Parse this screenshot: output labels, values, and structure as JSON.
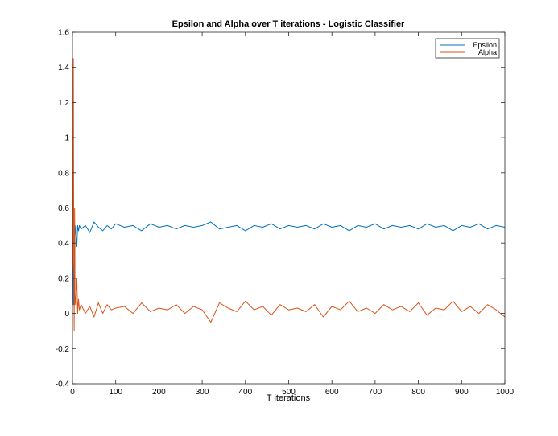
{
  "chart_data": {
    "type": "line",
    "title": "Epsilon and Alpha over T iterations - Logistic Classifier",
    "xlabel": "T iterations",
    "ylabel": "",
    "xlim": [
      0,
      1000
    ],
    "ylim": [
      -0.4,
      1.6
    ],
    "xticks": [
      "0",
      "100",
      "200",
      "300",
      "400",
      "500",
      "600",
      "700",
      "800",
      "900",
      "1000"
    ],
    "yticks": [
      "-0.4",
      "-0.2",
      "0",
      "0.2",
      "0.4",
      "0.6",
      "0.8",
      "1",
      "1.2",
      "1.4",
      "1.6"
    ],
    "grid": false,
    "legend_position": "top-right",
    "series": [
      {
        "name": "Epsilon",
        "color": "#0072BD",
        "x": [
          1,
          2,
          3,
          4,
          5,
          6,
          8,
          10,
          12,
          14,
          16,
          20,
          30,
          40,
          50,
          60,
          70,
          80,
          90,
          100,
          120,
          140,
          160,
          180,
          200,
          220,
          240,
          260,
          280,
          300,
          320,
          340,
          360,
          380,
          400,
          420,
          440,
          460,
          480,
          500,
          520,
          540,
          560,
          580,
          600,
          620,
          640,
          660,
          680,
          700,
          720,
          740,
          760,
          780,
          800,
          820,
          840,
          860,
          880,
          900,
          920,
          940,
          960,
          980,
          1000
        ],
        "y": [
          0.3,
          0.05,
          0.25,
          0.4,
          0.2,
          0.5,
          0.45,
          0.38,
          0.5,
          0.47,
          0.5,
          0.48,
          0.5,
          0.46,
          0.52,
          0.49,
          0.47,
          0.5,
          0.48,
          0.51,
          0.49,
          0.5,
          0.47,
          0.51,
          0.49,
          0.5,
          0.48,
          0.5,
          0.49,
          0.5,
          0.52,
          0.48,
          0.49,
          0.5,
          0.47,
          0.5,
          0.49,
          0.51,
          0.48,
          0.5,
          0.49,
          0.5,
          0.48,
          0.51,
          0.49,
          0.5,
          0.47,
          0.5,
          0.49,
          0.51,
          0.48,
          0.5,
          0.49,
          0.5,
          0.48,
          0.51,
          0.49,
          0.5,
          0.47,
          0.5,
          0.49,
          0.51,
          0.48,
          0.5,
          0.49
        ]
      },
      {
        "name": "Alpha",
        "color": "#D95319",
        "x": [
          1,
          2,
          3,
          4,
          5,
          6,
          8,
          10,
          12,
          14,
          16,
          20,
          30,
          40,
          50,
          60,
          70,
          80,
          90,
          100,
          120,
          140,
          160,
          180,
          200,
          220,
          240,
          260,
          280,
          300,
          320,
          340,
          360,
          380,
          400,
          420,
          440,
          460,
          480,
          500,
          520,
          540,
          560,
          580,
          600,
          620,
          640,
          660,
          680,
          700,
          720,
          740,
          760,
          780,
          800,
          820,
          840,
          860,
          880,
          900,
          920,
          940,
          960,
          980,
          1000
        ],
        "y": [
          0.25,
          1.45,
          0.4,
          -0.1,
          0.6,
          0.05,
          0.1,
          0.2,
          0.0,
          0.08,
          0.02,
          0.05,
          0.0,
          0.04,
          -0.02,
          0.06,
          0.0,
          0.05,
          0.02,
          0.03,
          0.04,
          0.0,
          0.06,
          0.01,
          0.03,
          0.02,
          0.05,
          0.0,
          0.04,
          0.02,
          -0.05,
          0.06,
          0.03,
          0.01,
          0.07,
          0.02,
          0.04,
          -0.01,
          0.05,
          0.02,
          0.03,
          0.01,
          0.05,
          -0.02,
          0.04,
          0.02,
          0.07,
          0.01,
          0.03,
          0.0,
          0.05,
          0.02,
          0.04,
          0.01,
          0.06,
          -0.01,
          0.03,
          0.02,
          0.07,
          0.01,
          0.04,
          0.0,
          0.05,
          0.02,
          -0.02
        ]
      }
    ]
  }
}
